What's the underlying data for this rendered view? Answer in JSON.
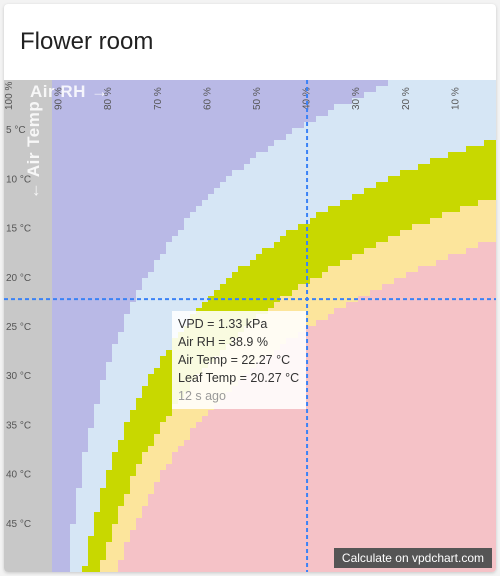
{
  "card": {
    "title": "Flower room"
  },
  "chart_data": {
    "type": "heatmap",
    "x_axis_title": "Air RH →",
    "y_axis_title": "← Air Temp",
    "rh_ticks": [
      "100 %",
      "90 %",
      "80 %",
      "70 %",
      "60 %",
      "50 %",
      "40 %",
      "30 %",
      "20 %",
      "10 %"
    ],
    "temp_ticks": [
      "5 °C",
      "10 °C",
      "15 °C",
      "20 °C",
      "25 °C",
      "30 °C",
      "35 °C",
      "40 °C",
      "45 °C"
    ],
    "xlim": [
      100,
      0
    ],
    "ylim": [
      0,
      50
    ],
    "current": {
      "rh": 38.9,
      "temp": 22.27
    },
    "zone_colors": {
      "gray": "#c8c8c8",
      "purple": "#b9b9e6",
      "light_blue": "#d6e6f5",
      "green": "#c8d800",
      "yellow": "#fce59c",
      "pink": "#f5c2c7"
    },
    "crosshair_color": "#3b82f6"
  },
  "tooltip": {
    "vpd": "VPD = 1.33 kPa",
    "rh": "Air RH = 38.9 %",
    "air_temp": "Air Temp = 22.27 °C",
    "leaf_temp": "Leaf Temp = 20.27 °C",
    "ago": "12 s ago"
  },
  "credit": "Calculate on vpdchart.com"
}
